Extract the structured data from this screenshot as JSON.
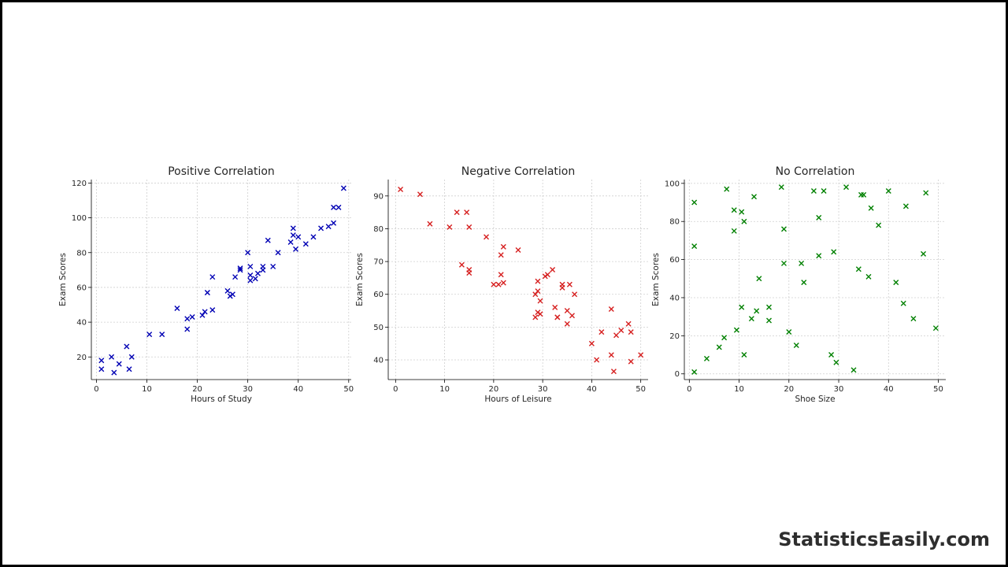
{
  "chart_data": [
    {
      "type": "scatter",
      "title": "Positive Correlation",
      "xlabel": "Hours of Study",
      "ylabel": "Exam Scores",
      "xlim": [
        -1,
        50.5
      ],
      "ylim": [
        7,
        122
      ],
      "xticks": [
        0,
        10,
        20,
        30,
        40,
        50
      ],
      "yticks": [
        20,
        40,
        60,
        80,
        100,
        120
      ],
      "grid": true,
      "marker": "x",
      "color": "#0000b4",
      "points": [
        [
          1,
          18
        ],
        [
          1,
          13
        ],
        [
          3,
          20
        ],
        [
          3.5,
          11
        ],
        [
          4.5,
          16
        ],
        [
          6,
          26
        ],
        [
          6.5,
          13
        ],
        [
          7,
          20
        ],
        [
          10.5,
          33
        ],
        [
          13,
          33
        ],
        [
          16,
          48
        ],
        [
          18,
          42
        ],
        [
          18,
          36
        ],
        [
          19,
          43
        ],
        [
          21,
          44
        ],
        [
          21.5,
          46
        ],
        [
          22,
          57
        ],
        [
          22,
          57
        ],
        [
          23,
          47
        ],
        [
          23,
          66
        ],
        [
          26,
          58
        ],
        [
          26.5,
          55
        ],
        [
          27,
          56
        ],
        [
          27.5,
          66
        ],
        [
          28.5,
          70
        ],
        [
          28.5,
          71
        ],
        [
          30,
          80
        ],
        [
          30.5,
          72
        ],
        [
          30.5,
          64
        ],
        [
          30.5,
          67
        ],
        [
          31.5,
          65
        ],
        [
          32,
          68
        ],
        [
          33,
          70
        ],
        [
          33,
          72
        ],
        [
          34,
          87
        ],
        [
          35,
          72
        ],
        [
          36,
          80
        ],
        [
          38.5,
          86
        ],
        [
          39,
          94
        ],
        [
          39,
          90
        ],
        [
          39.5,
          82
        ],
        [
          40,
          89
        ],
        [
          41.5,
          85
        ],
        [
          43,
          89
        ],
        [
          44.5,
          94
        ],
        [
          46,
          95
        ],
        [
          47,
          106
        ],
        [
          47,
          97
        ],
        [
          48,
          106
        ],
        [
          49,
          117
        ]
      ]
    },
    {
      "type": "scatter",
      "title": "Negative Correlation",
      "xlabel": "Hours of Leisure",
      "ylabel": "Exam Scores",
      "xlim": [
        -1.5,
        51.5
      ],
      "ylim": [
        34,
        95
      ],
      "xticks": [
        0,
        10,
        20,
        30,
        40,
        50
      ],
      "yticks": [
        40,
        50,
        60,
        70,
        80,
        90
      ],
      "grid": true,
      "marker": "x",
      "color": "#d62020",
      "points": [
        [
          1,
          92
        ],
        [
          5,
          90.5
        ],
        [
          7,
          81.5
        ],
        [
          11,
          80.5
        ],
        [
          12.5,
          85
        ],
        [
          13.5,
          69
        ],
        [
          14.5,
          85
        ],
        [
          15,
          80.5
        ],
        [
          15,
          67.5
        ],
        [
          15,
          66.5
        ],
        [
          18.5,
          77.5
        ],
        [
          20,
          63
        ],
        [
          21,
          63
        ],
        [
          21.5,
          66
        ],
        [
          21.5,
          72
        ],
        [
          22,
          74.5
        ],
        [
          22,
          63.5
        ],
        [
          25,
          73.5
        ],
        [
          28.5,
          60
        ],
        [
          28.5,
          53
        ],
        [
          29,
          61
        ],
        [
          29,
          64
        ],
        [
          29,
          54.5
        ],
        [
          29.5,
          58
        ],
        [
          29.5,
          54
        ],
        [
          30.5,
          65.5
        ],
        [
          31,
          66
        ],
        [
          32,
          67.5
        ],
        [
          32.5,
          56
        ],
        [
          33,
          53
        ],
        [
          33,
          53
        ],
        [
          34,
          63
        ],
        [
          34,
          62
        ],
        [
          35,
          51
        ],
        [
          35,
          55
        ],
        [
          35.5,
          63
        ],
        [
          36,
          53.5
        ],
        [
          36.5,
          60
        ],
        [
          40,
          45
        ],
        [
          41,
          40
        ],
        [
          42,
          48.5
        ],
        [
          44,
          55.5
        ],
        [
          44,
          41.5
        ],
        [
          44.5,
          36.5
        ],
        [
          45,
          47.5
        ],
        [
          46,
          49
        ],
        [
          47.5,
          51
        ],
        [
          48,
          48.5
        ],
        [
          48,
          39.5
        ],
        [
          50,
          41.5
        ]
      ]
    },
    {
      "type": "scatter",
      "title": "No Correlation",
      "xlabel": "Shoe Size",
      "ylabel": "Exam Scores",
      "xlim": [
        -1,
        51.5
      ],
      "ylim": [
        -3,
        102
      ],
      "xticks": [
        0,
        10,
        20,
        30,
        40,
        50
      ],
      "yticks": [
        0,
        20,
        40,
        60,
        80,
        100
      ],
      "grid": true,
      "marker": "x",
      "color": "#008000",
      "points": [
        [
          1,
          1
        ],
        [
          1,
          67
        ],
        [
          1,
          90
        ],
        [
          3.5,
          8
        ],
        [
          6,
          14
        ],
        [
          7,
          19
        ],
        [
          7.5,
          97
        ],
        [
          9,
          86
        ],
        [
          9,
          75
        ],
        [
          9.5,
          23
        ],
        [
          10.5,
          35
        ],
        [
          10.5,
          85
        ],
        [
          11,
          80
        ],
        [
          11,
          10
        ],
        [
          12.5,
          29
        ],
        [
          13,
          93
        ],
        [
          13.5,
          33
        ],
        [
          14,
          50
        ],
        [
          16,
          35
        ],
        [
          16,
          28
        ],
        [
          18.5,
          98
        ],
        [
          19,
          76
        ],
        [
          19,
          58
        ],
        [
          20,
          22
        ],
        [
          21.5,
          15
        ],
        [
          22.5,
          58
        ],
        [
          23,
          48
        ],
        [
          25,
          96
        ],
        [
          26,
          82
        ],
        [
          26,
          62
        ],
        [
          27,
          96
        ],
        [
          28.5,
          10
        ],
        [
          29,
          64
        ],
        [
          29.5,
          6
        ],
        [
          31.5,
          98
        ],
        [
          33,
          2
        ],
        [
          34,
          55
        ],
        [
          34.5,
          94
        ],
        [
          35,
          94
        ],
        [
          36,
          51
        ],
        [
          36.5,
          87
        ],
        [
          38,
          78
        ],
        [
          40,
          96
        ],
        [
          41.5,
          48
        ],
        [
          43,
          37
        ],
        [
          43.5,
          88
        ],
        [
          45,
          29
        ],
        [
          47,
          63
        ],
        [
          47.5,
          95
        ],
        [
          49.5,
          24
        ]
      ]
    }
  ],
  "watermark": "StatisticsEasily.com"
}
